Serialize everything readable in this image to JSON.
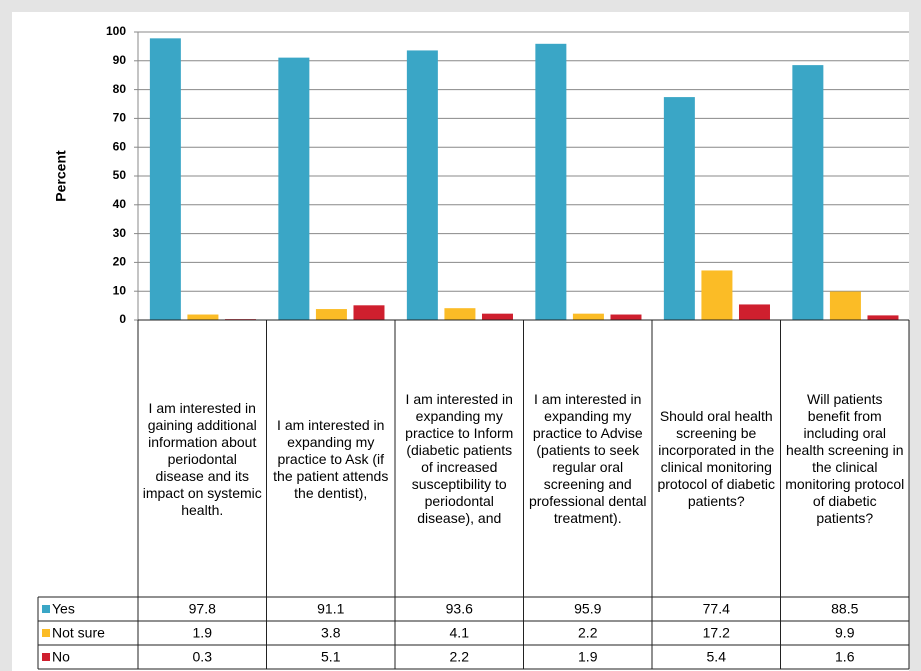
{
  "chart_data": {
    "type": "bar",
    "y_label": "Percent",
    "categories": [
      "I am interested in gaining additional information about periodontal disease and its impact on systemic health.",
      "I am interested in expanding my practice to Ask (if the patient attends the dentist),",
      "I am interested in expanding my practice to Inform (diabetic patients of increased susceptibility to periodontal disease), and",
      "I am interested in expanding my practice to Advise (patients to seek regular oral screening and professional dental treatment).",
      "Should oral health screening be incorporated in the clinical monitoring protocol of diabetic patients?",
      "Will patients benefit from including oral health screening in the clinical monitoring protocol of diabetic patients?"
    ],
    "series": [
      {
        "name": "Yes",
        "color": "#3aa6c6",
        "values": [
          97.8,
          91.1,
          93.6,
          95.9,
          77.4,
          88.5
        ]
      },
      {
        "name": "Not sure",
        "color": "#fbbc26",
        "values": [
          1.9,
          3.8,
          4.1,
          2.2,
          17.2,
          9.9
        ]
      },
      {
        "name": "No",
        "color": "#cf1f2e",
        "values": [
          0.3,
          5.1,
          2.2,
          1.9,
          5.4,
          1.6
        ]
      }
    ],
    "ylim": [
      0,
      100
    ],
    "yticks": [
      0,
      10,
      20,
      30,
      40,
      50,
      60,
      70,
      80,
      90,
      100
    ],
    "grid": true
  }
}
